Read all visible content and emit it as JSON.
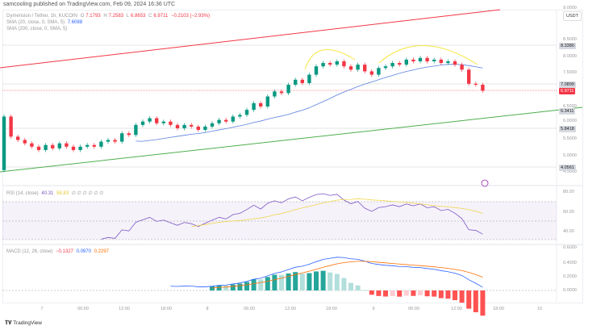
{
  "header": {
    "published": "samcooling published on TradingView.com, Feb 09, 2024 16:36 UTC"
  },
  "legend": {
    "symbol": "Dymension / Tether, 1h, KUCOIN",
    "o_label": "O",
    "o": "7.1793",
    "h_label": "H",
    "h": "7.2583",
    "l_label": "L",
    "l": "6.8653",
    "c_label": "C",
    "c": "6.9711",
    "chg": "−0.2103 (−2.93%)",
    "sma20": "SMA (20, close, 0, SMA, 5)",
    "sma20_val": "7.6088",
    "sma200": "SMA (200, close, 0, SMA, 5)"
  },
  "rsi_legend": {
    "label": "RSI (14, close)",
    "v1": "40.31",
    "v2": "58.83",
    "rest": "∅ ∅ ∅ ∅ ∅ ∅"
  },
  "macd_legend": {
    "label": "MACD (12, 26, close)",
    "v1": "−0.1327",
    "v2": "0.0970",
    "v3": "0.2297"
  },
  "currency": "USDT",
  "price_axis": [
    "9.0000",
    "8.5000",
    "8.0000",
    "7.5000",
    "6.5000",
    "6.0000",
    "5.5000",
    "5.0000",
    "4.5000"
  ],
  "rsi_axis": [
    "80.00",
    "60.00",
    "40.00"
  ],
  "macd_axis": [
    "0.6000",
    "0.4000",
    "0.2000",
    "0.0000"
  ],
  "badges": [
    {
      "v": "8.3380",
      "bg": "#d6d9e0"
    },
    {
      "v": "7.0899",
      "bg": "#d6d9e0"
    },
    {
      "v": "6.9711",
      "bg": "#f23645"
    },
    {
      "v": "6.3411",
      "bg": "#d6d9e0"
    },
    {
      "v": "5.8418",
      "bg": "#d6d9e0"
    },
    {
      "v": "4.0561",
      "bg": "#d6d9e0"
    }
  ],
  "time_axis": [
    "7",
    "06:00",
    "12:00",
    "18:00",
    "8",
    "06:00",
    "12:00",
    "18:00",
    "9",
    "06:00",
    "12:00",
    "18:00",
    "10"
  ],
  "brand": "TradingView",
  "colors": {
    "up": "#089981",
    "down": "#f23645",
    "sma": "#5b7fe0",
    "rsi": "#7e57c2",
    "rsi_ma": "#f0d64a",
    "macd": "#2962ff",
    "signal": "#ff6d00",
    "channel_top": "#f23645",
    "channel_bottom": "#4caf50",
    "pattern": "#f5e642"
  },
  "chart_data": {
    "type": "candlestick",
    "first_open": 4.6,
    "closes": [
      6.2,
      5.6,
      5.5,
      5.4,
      5.3,
      5.2,
      5.35,
      5.25,
      5.4,
      5.3,
      5.2,
      5.3,
      5.35,
      5.3,
      5.45,
      5.5,
      5.45,
      5.7,
      5.65,
      5.95,
      6.05,
      6.15,
      6.0,
      6.05,
      5.95,
      5.85,
      5.95,
      5.9,
      5.8,
      5.9,
      6.0,
      6.1,
      6.05,
      6.2,
      6.25,
      6.4,
      6.6,
      6.5,
      6.8,
      6.95,
      6.9,
      7.15,
      7.3,
      7.2,
      7.45,
      7.7,
      7.8,
      7.75,
      7.85,
      7.7,
      7.6,
      7.75,
      7.55,
      7.45,
      7.65,
      7.7,
      7.8,
      7.75,
      7.9,
      7.85,
      7.95,
      7.85,
      7.9,
      7.8,
      7.85,
      7.75,
      7.6,
      7.18,
      7.15,
      6.97
    ]
  }
}
